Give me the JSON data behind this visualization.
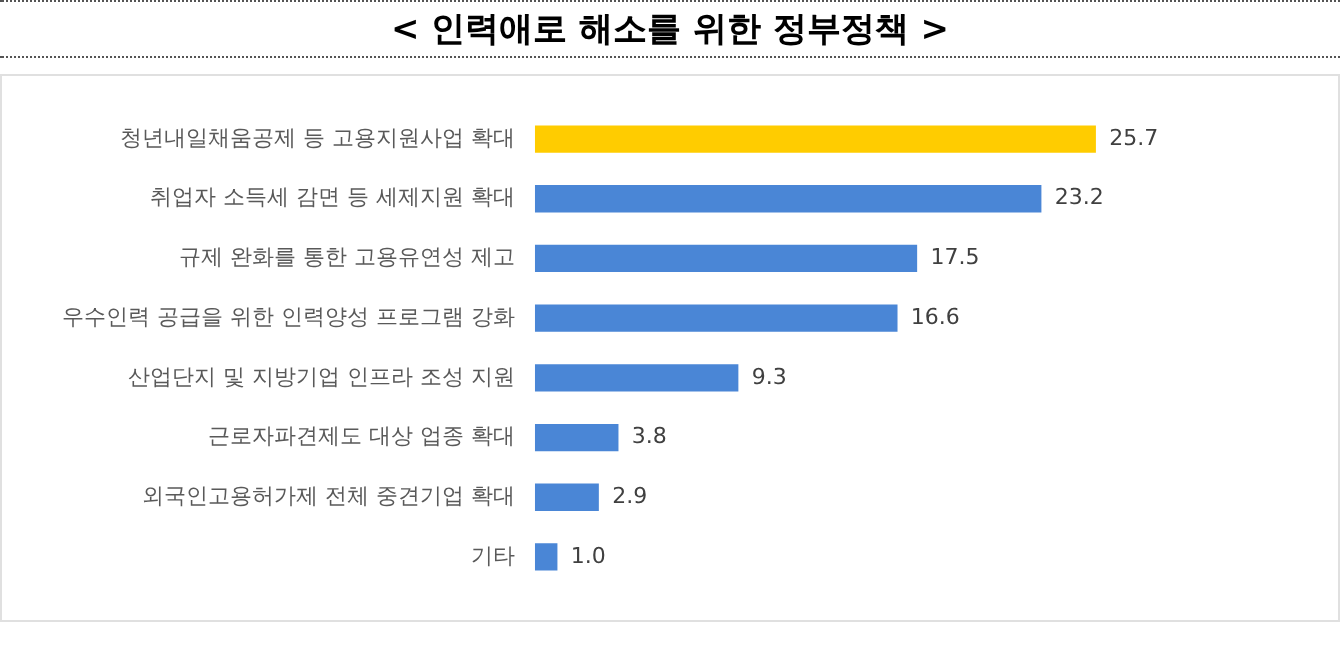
{
  "chart_data": {
    "type": "bar",
    "orientation": "horizontal",
    "title": "< 인력애로 해소를 위한 정부정책 >",
    "categories": [
      "청년내일채움공제 등 고용지원사업 확대",
      "취업자 소득세 감면 등 세제지원 확대",
      "규제 완화를 통한 고용유연성 제고",
      "우수인력 공급을 위한 인력양성 프로그램 강화",
      "산업단지 및 지방기업 인프라 조성 지원",
      "근로자파견제도 대상 업종 확대",
      "외국인고용허가제 전체 중견기업 확대",
      "기타"
    ],
    "values": [
      25.7,
      23.2,
      17.5,
      16.6,
      9.3,
      3.8,
      2.9,
      1.0
    ],
    "colors": [
      "#ffcc00",
      "#4a86d6",
      "#4a86d6",
      "#4a86d6",
      "#4a86d6",
      "#4a86d6",
      "#4a86d6",
      "#4a86d6"
    ],
    "value_labels": [
      "25.7",
      "23.2",
      "17.5",
      "16.6",
      "9.3",
      "3.8",
      "2.9",
      "1.0"
    ]
  }
}
